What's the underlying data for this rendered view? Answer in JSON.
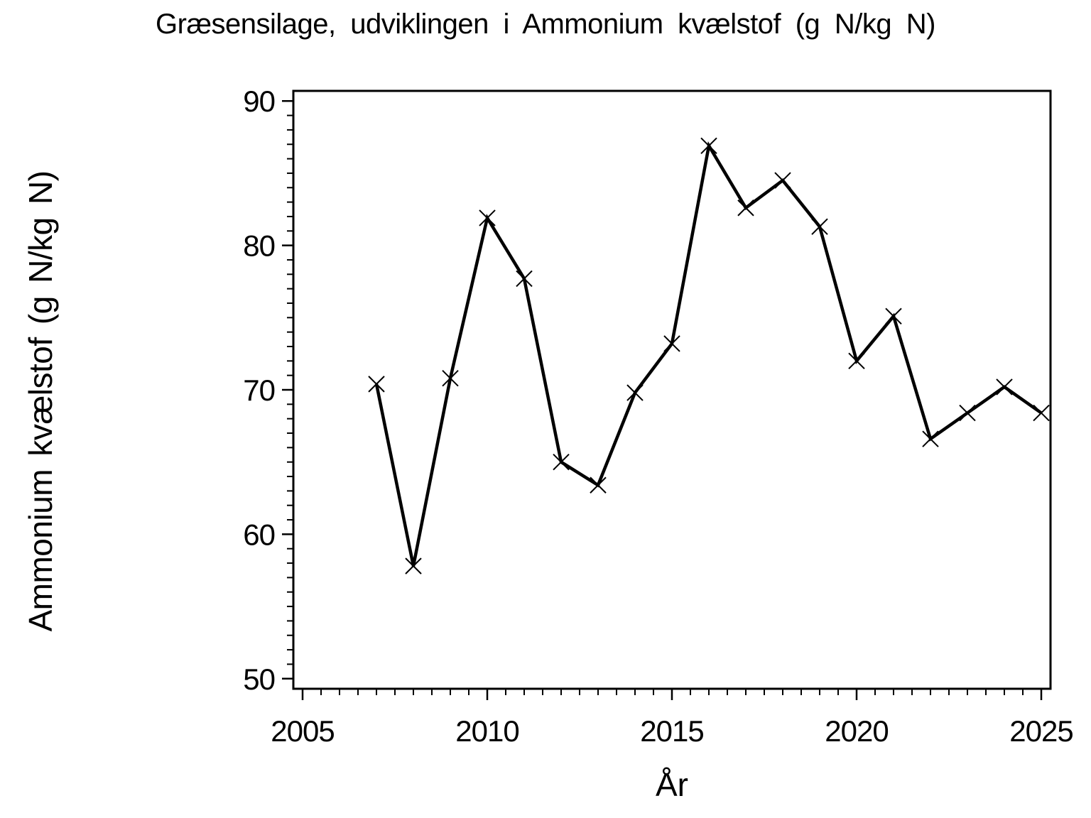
{
  "chart_data": {
    "type": "line",
    "title": "Græsensilage, udviklingen i Ammonium kvælstof (g N/kg N)",
    "xlabel": "År",
    "ylabel": "Ammonium kvælstof (g N/kg N)",
    "x": [
      2007,
      2008,
      2009,
      2010,
      2011,
      2012,
      2013,
      2014,
      2015,
      2016,
      2017,
      2018,
      2019,
      2020,
      2021,
      2022,
      2023,
      2024,
      2025
    ],
    "series": [
      {
        "name": "Ammonium kvælstof",
        "values": [
          70.4,
          57.8,
          70.8,
          81.9,
          77.7,
          65.0,
          63.4,
          69.8,
          73.2,
          86.9,
          82.6,
          84.5,
          81.3,
          72.0,
          75.1,
          66.6,
          68.4,
          70.2,
          68.4
        ]
      }
    ],
    "xlim": [
      2004.75,
      2025.25
    ],
    "ylim": [
      49.3,
      90.7
    ],
    "x_ticks": [
      2005,
      2010,
      2015,
      2020,
      2025
    ],
    "y_ticks": [
      50,
      60,
      70,
      80,
      90
    ],
    "x_minor_step": 0.5,
    "y_minor_step": 1,
    "grid": false,
    "legend": "none",
    "marker": "x-cross",
    "line_color": "#000000",
    "axis_color": "#000000",
    "background_color": "#ffffff"
  }
}
